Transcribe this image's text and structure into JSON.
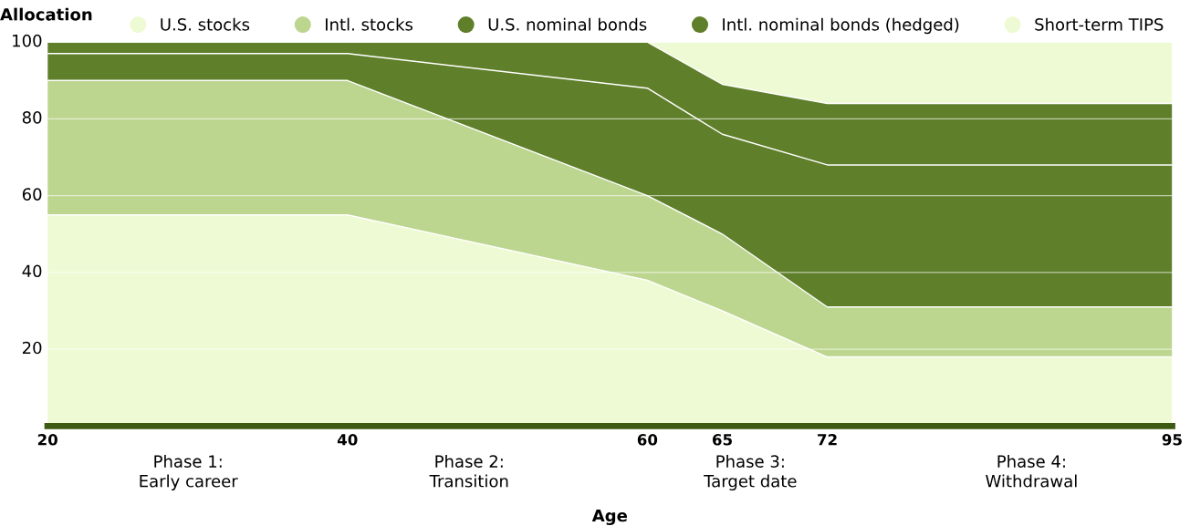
{
  "chart_data": {
    "type": "area",
    "stacked": true,
    "ylabel": "Allocation",
    "xlabel": "Age",
    "x": [
      20,
      40,
      60,
      65,
      72,
      95
    ],
    "series": [
      {
        "name": "U.S. stocks",
        "color": "#eefad3",
        "values": [
          55,
          55,
          38,
          30,
          18,
          18
        ]
      },
      {
        "name": "Intl. stocks",
        "color": "#bcd58f",
        "values": [
          35,
          35,
          22,
          20,
          13,
          13
        ]
      },
      {
        "name": "U.S. nominal bonds",
        "color": "#5f7f2a",
        "values": [
          7,
          7,
          28,
          26,
          37,
          37
        ]
      },
      {
        "name": "Intl. nominal bonds (hedged)",
        "color": "#5f7f2a",
        "values": [
          3,
          3,
          12,
          13,
          16,
          16
        ]
      },
      {
        "name": "Short-term TIPS",
        "color": "#eefad3",
        "values": [
          0,
          0,
          0,
          11,
          16,
          16
        ]
      }
    ],
    "xlim": [
      20,
      95
    ],
    "xticks": [
      20,
      40,
      60,
      65,
      72,
      95
    ],
    "ylim": [
      0,
      100
    ],
    "yticks": [
      20,
      40,
      60,
      80,
      100
    ],
    "grid": "y",
    "legend": "top right",
    "annotations": [
      "Phase 1:\nEarly career",
      "Phase 2:\nTransition",
      "Phase 3:\nTarget date",
      "Phase 4:\nWithdrawal"
    ]
  }
}
